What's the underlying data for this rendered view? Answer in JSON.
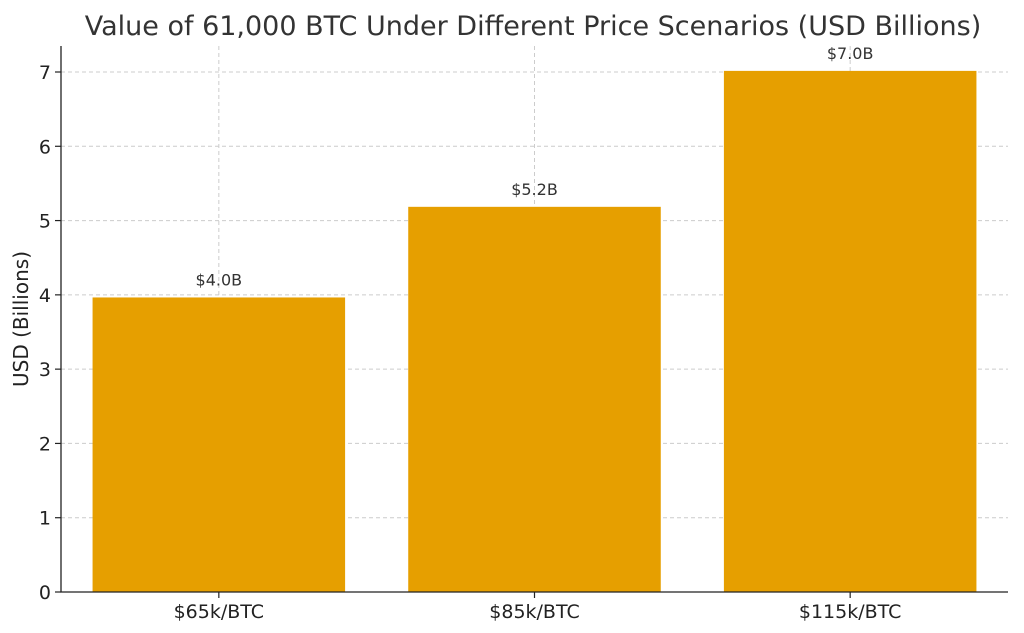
{
  "chart_data": {
    "type": "bar",
    "title": "Value of 61,000 BTC Under Different Price Scenarios (USD Billions)",
    "xlabel": "",
    "ylabel": "USD (Billions)",
    "categories": [
      "$65k/BTC",
      "$85k/BTC",
      "$115k/BTC"
    ],
    "values": [
      3.965,
      5.185,
      7.015
    ],
    "data_labels": [
      "$4.0B",
      "$5.2B",
      "$7.0B"
    ],
    "ylim": [
      0,
      7.35
    ],
    "yticks": [
      0,
      1,
      2,
      3,
      4,
      5,
      6,
      7
    ],
    "grid": true,
    "bar_color": "#E69F00"
  }
}
